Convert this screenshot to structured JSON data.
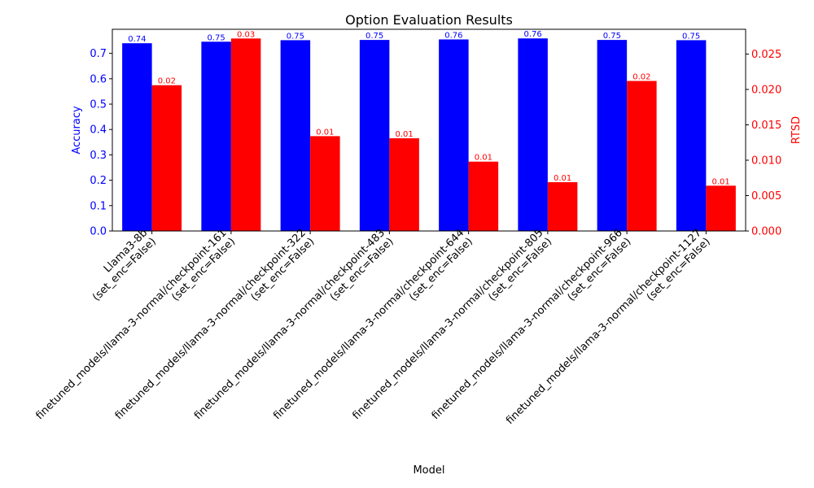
{
  "chart_data": {
    "type": "bar",
    "title": "Option Evaluation Results",
    "xlabel": "Model",
    "ylabel_left": "Accuracy",
    "ylabel_right": "RTSD",
    "categories": [
      [
        "Llama3-8b",
        "(set_enc=False)"
      ],
      [
        "finetuned_models/llama-3-normal/checkpoint-161",
        "(set_enc=False)"
      ],
      [
        "finetuned_models/llama-3-normal/checkpoint-322",
        "(set_enc=False)"
      ],
      [
        "finetuned_models/llama-3-normal/checkpoint-483",
        "(set_enc=False)"
      ],
      [
        "finetuned_models/llama-3-normal/checkpoint-644",
        "(set_enc=False)"
      ],
      [
        "finetuned_models/llama-3-normal/checkpoint-805",
        "(set_enc=False)"
      ],
      [
        "finetuned_models/llama-3-normal/checkpoint-966",
        "(set_enc=False)"
      ],
      [
        "finetuned_models/llama-3-normal/checkpoint-1127",
        "(set_enc=False)"
      ]
    ],
    "series": [
      {
        "axis": "left",
        "color": "#0000ff",
        "values": [
          0.74,
          0.746,
          0.752,
          0.753,
          0.755,
          0.759,
          0.753,
          0.752
        ],
        "labels": [
          "0.74",
          "0.75",
          "0.75",
          "0.75",
          "0.76",
          "0.76",
          "0.75",
          "0.75"
        ]
      },
      {
        "axis": "right",
        "color": "#ff0000",
        "values": [
          0.0206,
          0.0272,
          0.0134,
          0.0131,
          0.0098,
          0.0069,
          0.0212,
          0.0064
        ],
        "labels": [
          "0.02",
          "0.03",
          "0.01",
          "0.01",
          "0.01",
          "0.01",
          "0.02",
          "0.01"
        ]
      }
    ],
    "ylim_left": [
      0,
      0.795
    ],
    "yticks_left": [
      "0.0",
      "0.1",
      "0.2",
      "0.3",
      "0.4",
      "0.5",
      "0.6",
      "0.7"
    ],
    "ylim_right": [
      0,
      0.0285
    ],
    "yticks_right": [
      "0.000",
      "0.005",
      "0.010",
      "0.015",
      "0.020",
      "0.025"
    ],
    "grid": false,
    "legend": "none"
  }
}
